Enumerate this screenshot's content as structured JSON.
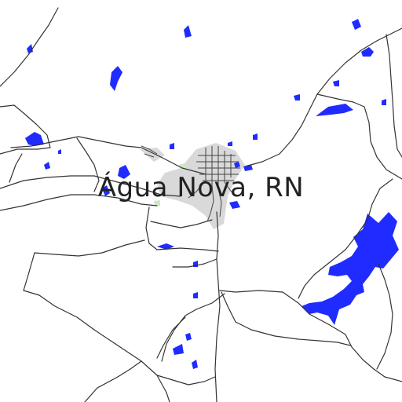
{
  "map": {
    "place_label": "Água Nova, RN",
    "colors": {
      "background": "#ffffff",
      "road": "#333333",
      "water": "#1f2bff",
      "urban": "#d9d9d9",
      "green": "#c8ecc0",
      "label": "#222222"
    },
    "layers": [
      "urban-area",
      "water-bodies",
      "roads",
      "place-label"
    ]
  }
}
